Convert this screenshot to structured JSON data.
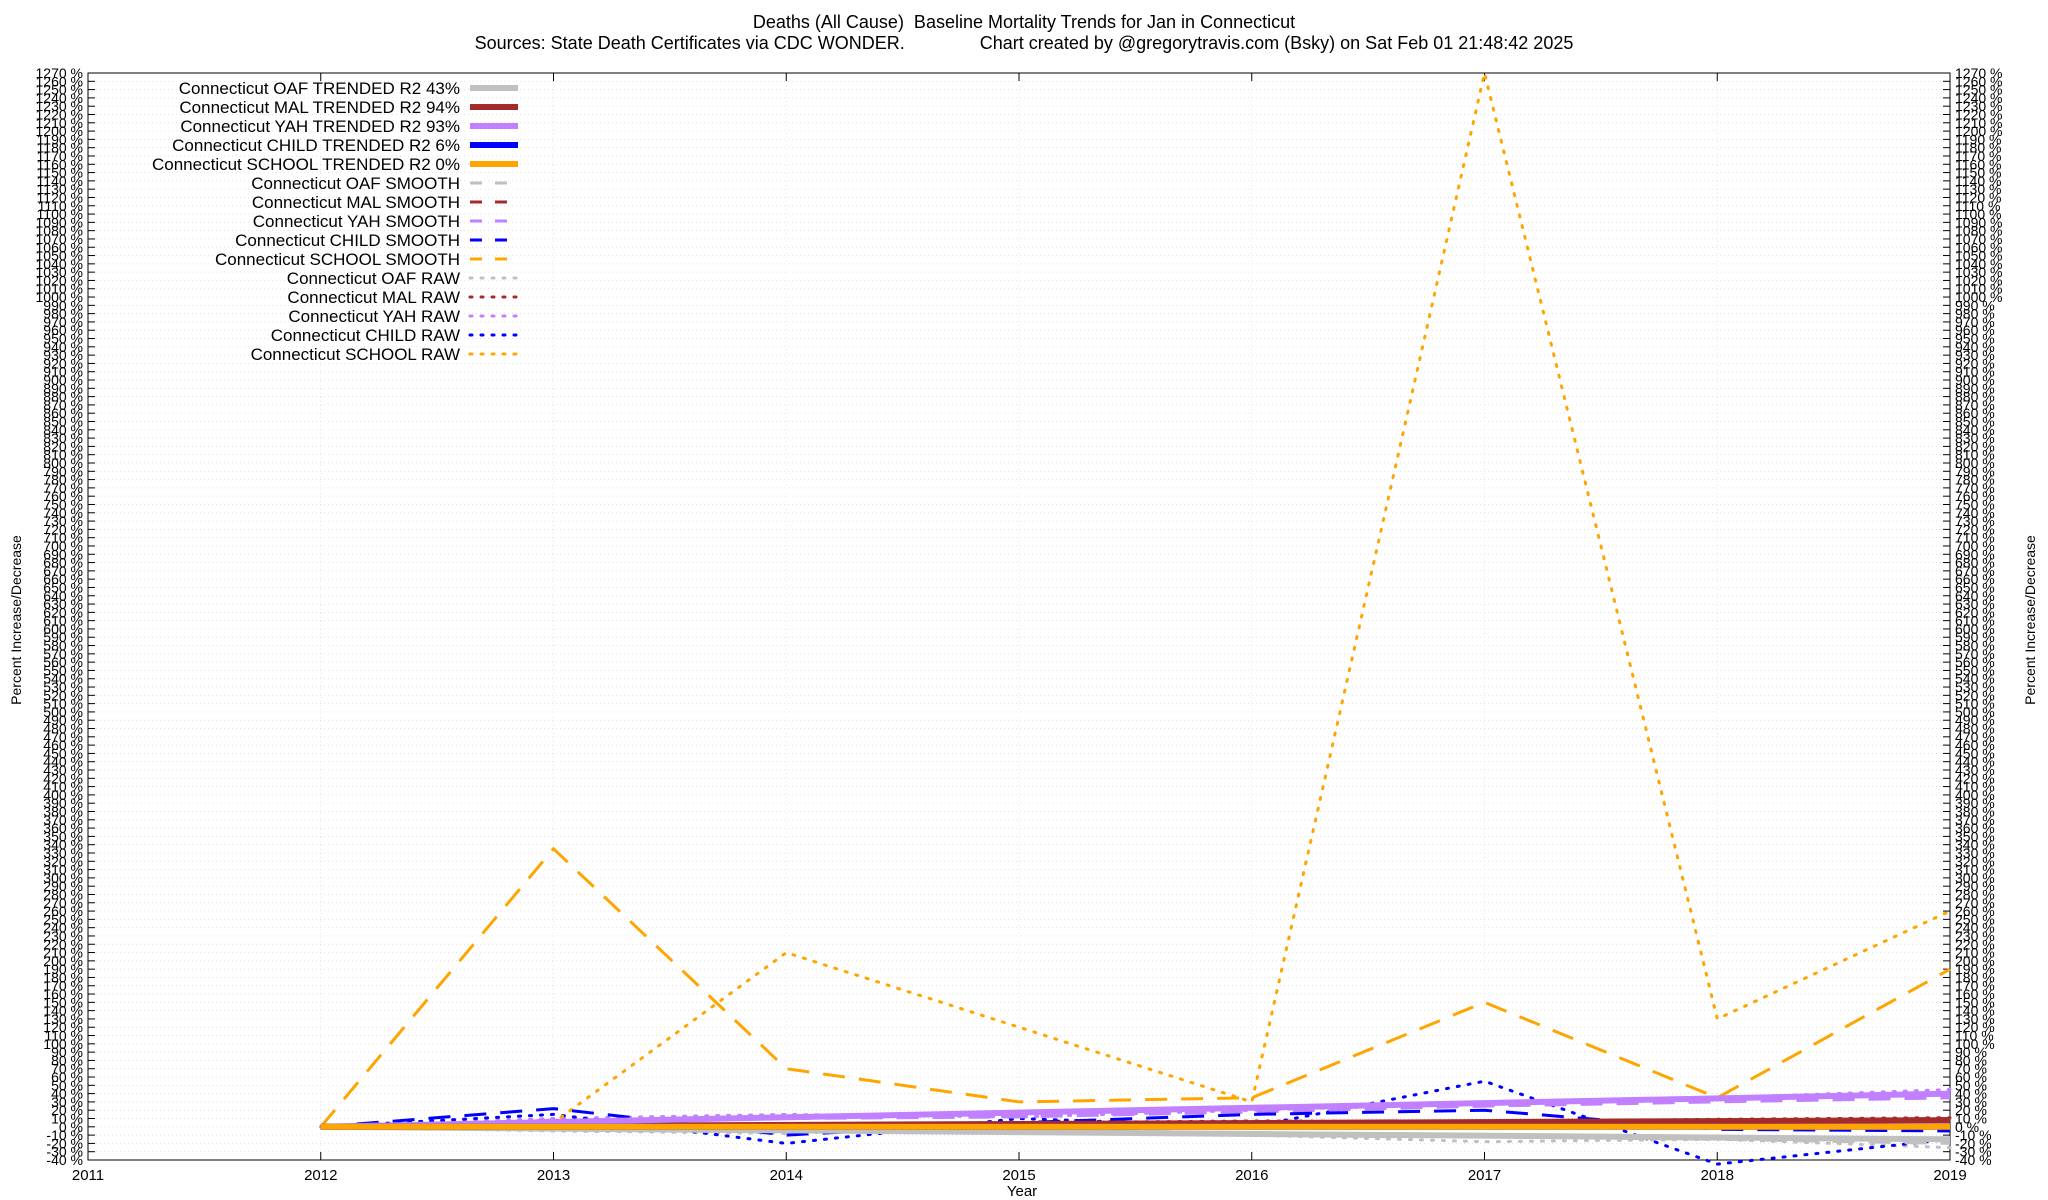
{
  "chart_data": {
    "type": "line",
    "title": "Deaths (All Cause)  Baseline Mortality Trends for Jan in Connecticut",
    "subtitle": "Sources: State Death Certificates via CDC WONDER.               Chart created by @gregorytravis.com (Bsky) on Sat Feb 01 21:48:42 2025",
    "xlabel": "Year",
    "ylabel": "Percent Increase/Decrease",
    "xlim": [
      2011,
      2019
    ],
    "ylim": [
      -40,
      1270
    ],
    "xticks": [
      "2011",
      "2012",
      "2013",
      "2014",
      "2015",
      "2016",
      "2017",
      "2018",
      "2019"
    ],
    "ytick_step": 10,
    "ytick_suffix": " %",
    "grid": true,
    "legend_position": "top-left",
    "series": [
      {
        "name": "Connecticut OAF TRENDED R2  43%",
        "style": "trend",
        "color": "#c0c0c0",
        "x": [
          2012,
          2019
        ],
        "y": [
          0,
          -15
        ]
      },
      {
        "name": "Connecticut MAL TRENDED R2  94%",
        "style": "trend",
        "color": "#a52a2a",
        "x": [
          2012,
          2019
        ],
        "y": [
          0,
          8
        ]
      },
      {
        "name": "Connecticut YAH TRENDED R2  93%",
        "style": "trend",
        "color": "#c080ff",
        "x": [
          2012,
          2019
        ],
        "y": [
          0,
          40
        ]
      },
      {
        "name": "Connecticut CHILD TRENDED R2   6%",
        "style": "trend",
        "color": "#0000ff",
        "x": [
          2012,
          2019
        ],
        "y": [
          0,
          0
        ]
      },
      {
        "name": "Connecticut SCHOOL TRENDED R2   0%",
        "style": "trend",
        "color": "#ffa500",
        "x": [
          2012,
          2019
        ],
        "y": [
          0,
          0
        ]
      },
      {
        "name": "Connecticut OAF SMOOTH",
        "style": "smooth",
        "color": "#c0c0c0",
        "x": [
          2012,
          2013,
          2014,
          2015,
          2016,
          2017,
          2018,
          2019
        ],
        "y": [
          0,
          -3,
          -5,
          -2,
          -8,
          -12,
          -15,
          -20
        ]
      },
      {
        "name": "Connecticut MAL SMOOTH",
        "style": "smooth",
        "color": "#a52a2a",
        "x": [
          2012,
          2013,
          2014,
          2015,
          2016,
          2017,
          2018,
          2019
        ],
        "y": [
          0,
          2,
          3,
          4,
          6,
          7,
          8,
          10
        ]
      },
      {
        "name": "Connecticut YAH SMOOTH",
        "style": "smooth",
        "color": "#c080ff",
        "x": [
          2012,
          2013,
          2014,
          2015,
          2016,
          2017,
          2018,
          2019
        ],
        "y": [
          0,
          8,
          10,
          12,
          18,
          25,
          30,
          35
        ]
      },
      {
        "name": "Connecticut CHILD SMOOTH",
        "style": "smooth",
        "color": "#0000ff",
        "x": [
          2012,
          2013,
          2014,
          2015,
          2016,
          2017,
          2018,
          2019
        ],
        "y": [
          0,
          22,
          -10,
          5,
          15,
          20,
          -3,
          -5
        ]
      },
      {
        "name": "Connecticut SCHOOL SMOOTH",
        "style": "smooth",
        "color": "#ffa500",
        "x": [
          2012,
          2013,
          2014,
          2015,
          2016,
          2017,
          2018,
          2019
        ],
        "y": [
          0,
          335,
          70,
          30,
          35,
          150,
          35,
          190
        ]
      },
      {
        "name": "Connecticut OAF RAW",
        "style": "raw",
        "color": "#c0c0c0",
        "x": [
          2012,
          2013,
          2014,
          2015,
          2016,
          2017,
          2018,
          2019
        ],
        "y": [
          0,
          -5,
          -8,
          0,
          -10,
          -18,
          -15,
          -25
        ]
      },
      {
        "name": "Connecticut MAL RAW",
        "style": "raw",
        "color": "#a52a2a",
        "x": [
          2012,
          2013,
          2014,
          2015,
          2016,
          2017,
          2018,
          2019
        ],
        "y": [
          0,
          3,
          2,
          5,
          7,
          6,
          9,
          11
        ]
      },
      {
        "name": "Connecticut YAH RAW",
        "style": "raw",
        "color": "#c080ff",
        "x": [
          2012,
          2013,
          2014,
          2015,
          2016,
          2017,
          2018,
          2019
        ],
        "y": [
          0,
          10,
          15,
          12,
          20,
          28,
          35,
          45
        ]
      },
      {
        "name": "Connecticut CHILD RAW",
        "style": "raw",
        "color": "#0000ff",
        "x": [
          2012,
          2013,
          2014,
          2015,
          2016,
          2017,
          2018,
          2019
        ],
        "y": [
          0,
          15,
          -20,
          10,
          0,
          55,
          -45,
          -15
        ]
      },
      {
        "name": "Connecticut SCHOOL RAW",
        "style": "raw",
        "color": "#ffa500",
        "x": [
          2012,
          2013,
          2014,
          2015,
          2016,
          2017,
          2018,
          2019
        ],
        "y": [
          0,
          5,
          210,
          120,
          30,
          1270,
          130,
          260
        ]
      }
    ]
  }
}
